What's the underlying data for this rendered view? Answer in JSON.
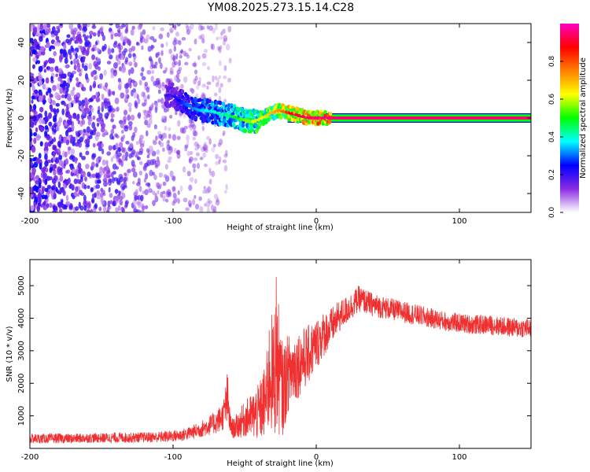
{
  "title": "YM08.2025.273.15.14.C28",
  "chart_data": [
    {
      "type": "heatmap",
      "title": "YM08.2025.273.15.14.C28",
      "xlabel": "Height of straight line (km)",
      "ylabel": "Frequency (Hz)",
      "xlim": [
        -200,
        150
      ],
      "ylim": [
        -50,
        50
      ],
      "xticks": [
        -200,
        -100,
        0,
        100
      ],
      "xtick_labels": [
        "-200",
        "-100",
        "0",
        "100"
      ],
      "yticks": [
        -40,
        -20,
        0,
        20,
        40
      ],
      "ytick_labels": [
        "-40",
        "-20",
        "0",
        "20",
        "40"
      ],
      "colorbar": {
        "label": "Normalized spectral amplitude",
        "range": [
          0,
          1
        ],
        "ticks": [
          0,
          0.2,
          0.4,
          0.6,
          0.8
        ],
        "tick_labels": [
          "0.0",
          "0.2",
          "0.4",
          "0.6",
          "0.8"
        ],
        "colors": [
          "#ffffff",
          "#8a2be2",
          "#0000ff",
          "#00ffff",
          "#00ff00",
          "#ffff00",
          "#ff8000",
          "#ff0000",
          "#ff00c0"
        ]
      },
      "noise_region_km": [
        -200,
        -60
      ],
      "ridge": {
        "x": [
          -100,
          -95,
          -90,
          -85,
          -80,
          -75,
          -70,
          -65,
          -60,
          -55,
          -50,
          -45,
          -40,
          -35,
          -30,
          -25,
          -20,
          -15,
          -10,
          -5,
          0,
          5,
          10,
          150
        ],
        "y": [
          12,
          9,
          7,
          5,
          4,
          4,
          3,
          2,
          1,
          0,
          -1,
          -2,
          -1,
          1,
          3,
          4,
          3,
          2,
          1,
          0,
          0,
          0,
          0,
          0
        ],
        "amplitude": [
          0.2,
          0.25,
          0.3,
          0.32,
          0.35,
          0.38,
          0.4,
          0.42,
          0.45,
          0.5,
          0.55,
          0.6,
          0.62,
          0.65,
          0.7,
          0.75,
          0.85,
          0.9,
          0.92,
          0.95,
          0.95,
          0.95,
          0.95,
          0.95
        ]
      },
      "line_band_hz": [
        -1,
        1
      ]
    },
    {
      "type": "line",
      "xlabel": "Height of straight line (km)",
      "ylabel": "SNR (10 * v/v)",
      "xlim": [
        -200,
        150
      ],
      "ylim": [
        0,
        5800
      ],
      "xticks": [
        -200,
        -100,
        0,
        100
      ],
      "xtick_labels": [
        "-200",
        "-100",
        "0",
        "100"
      ],
      "yticks": [
        1000,
        2000,
        3000,
        4000,
        5000
      ],
      "ytick_labels": [
        "1000",
        "2000",
        "3000",
        "4000",
        "5000"
      ],
      "color": "#f03030",
      "series": [
        {
          "name": "SNR",
          "x": [
            -200,
            -190,
            -180,
            -170,
            -160,
            -150,
            -140,
            -130,
            -120,
            -110,
            -100,
            -95,
            -90,
            -85,
            -80,
            -75,
            -70,
            -65,
            -62,
            -60,
            -58,
            -55,
            -50,
            -45,
            -40,
            -35,
            -32,
            -30,
            -28,
            -25,
            -23,
            -20,
            -15,
            -10,
            -5,
            0,
            5,
            10,
            15,
            20,
            25,
            30,
            35,
            40,
            45,
            50,
            60,
            70,
            80,
            90,
            100,
            110,
            120,
            130,
            140,
            150
          ],
          "y": [
            300,
            300,
            310,
            300,
            320,
            320,
            330,
            330,
            340,
            350,
            380,
            400,
            450,
            520,
            600,
            700,
            800,
            1000,
            1500,
            700,
            600,
            700,
            900,
            1000,
            1100,
            1500,
            2500,
            2000,
            3000,
            2000,
            1800,
            2300,
            2500,
            2700,
            2900,
            3200,
            3500,
            3700,
            4000,
            4200,
            4400,
            4600,
            4500,
            4400,
            4350,
            4300,
            4200,
            4100,
            4000,
            3900,
            3850,
            3800,
            3800,
            3750,
            3700,
            3700
          ],
          "spread": [
            150,
            150,
            150,
            150,
            150,
            150,
            160,
            160,
            160,
            170,
            180,
            190,
            200,
            220,
            260,
            300,
            350,
            450,
            900,
            350,
            300,
            400,
            550,
            700,
            900,
            1200,
            2000,
            1800,
            2600,
            1600,
            1400,
            1200,
            1100,
            1000,
            900,
            800,
            700,
            600,
            500,
            450,
            420,
            400,
            380,
            360,
            350,
            340,
            330,
            320,
            310,
            300,
            300,
            300,
            300,
            300,
            300,
            300
          ]
        }
      ]
    }
  ]
}
